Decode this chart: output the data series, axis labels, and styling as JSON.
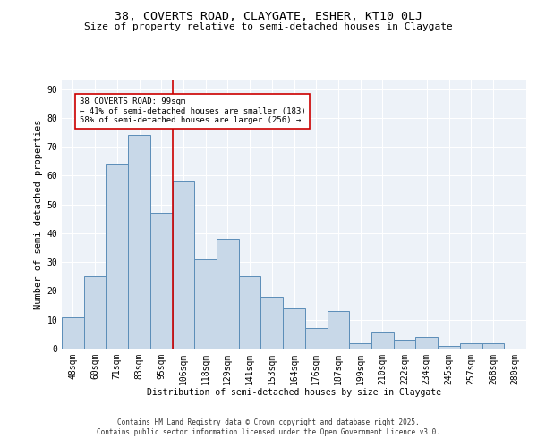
{
  "title1": "38, COVERTS ROAD, CLAYGATE, ESHER, KT10 0LJ",
  "title2": "Size of property relative to semi-detached houses in Claygate",
  "xlabel": "Distribution of semi-detached houses by size in Claygate",
  "ylabel": "Number of semi-detached properties",
  "categories": [
    "48sqm",
    "60sqm",
    "71sqm",
    "83sqm",
    "95sqm",
    "106sqm",
    "118sqm",
    "129sqm",
    "141sqm",
    "153sqm",
    "164sqm",
    "176sqm",
    "187sqm",
    "199sqm",
    "210sqm",
    "222sqm",
    "234sqm",
    "245sqm",
    "257sqm",
    "268sqm",
    "280sqm"
  ],
  "values": [
    11,
    25,
    64,
    74,
    47,
    58,
    31,
    38,
    25,
    18,
    14,
    7,
    13,
    2,
    6,
    3,
    4,
    1,
    2,
    2,
    0
  ],
  "bar_color": "#c8d8e8",
  "bar_edge_color": "#5b8db8",
  "vline_x_index": 4.5,
  "vline_color": "#cc0000",
  "annotation_box_text": "38 COVERTS ROAD: 99sqm\n← 41% of semi-detached houses are smaller (183)\n58% of semi-detached houses are larger (256) →",
  "annotation_box_color": "#ffffff",
  "annotation_box_edge_color": "#cc0000",
  "ylim": [
    0,
    93
  ],
  "yticks": [
    0,
    10,
    20,
    30,
    40,
    50,
    60,
    70,
    80,
    90
  ],
  "footer1": "Contains HM Land Registry data © Crown copyright and database right 2025.",
  "footer2": "Contains public sector information licensed under the Open Government Licence v3.0.",
  "bg_color": "#edf2f8",
  "grid_color": "#ffffff",
  "title1_fontsize": 9.5,
  "title2_fontsize": 8,
  "axis_label_fontsize": 7,
  "tick_fontsize": 7,
  "ylabel_fontsize": 7.5,
  "annotation_fontsize": 6.5,
  "footer_fontsize": 5.5
}
